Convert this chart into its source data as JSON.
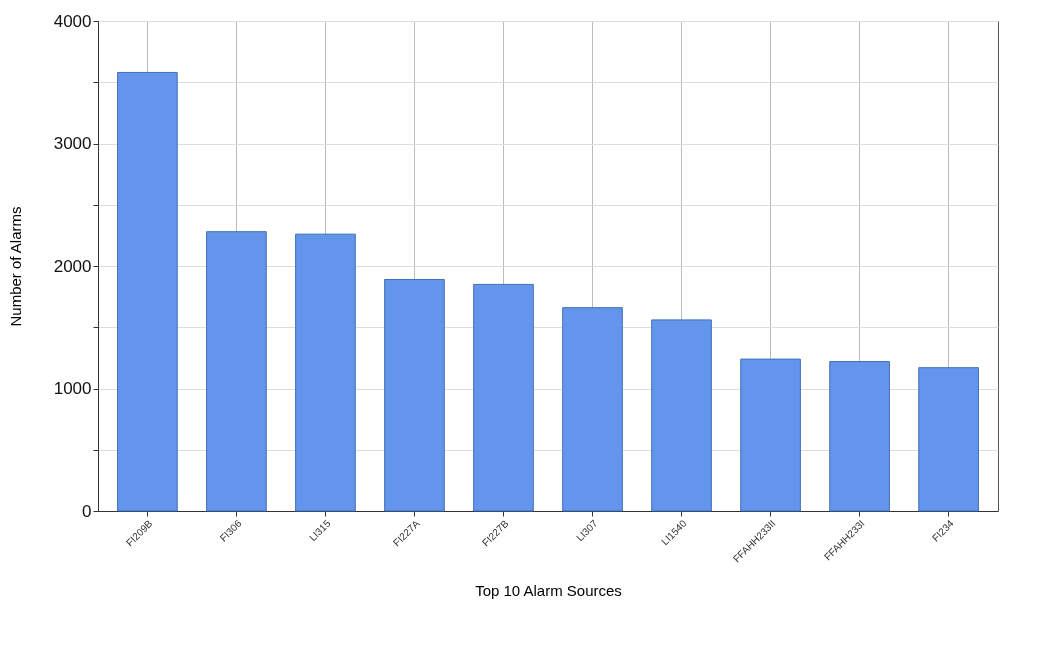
{
  "chart_data": {
    "type": "bar",
    "xlabel": "Top 10 Alarm Sources",
    "ylabel": "Number of Alarms",
    "categories": [
      "FI209B",
      "FI306",
      "LI315",
      "FI227A",
      "FI227B",
      "LI307",
      "LI1540",
      "FFAHH233II",
      "FFAHH233I",
      "FI234"
    ],
    "values": [
      3580,
      2280,
      2260,
      1890,
      1850,
      1660,
      1560,
      1240,
      1220,
      1170
    ],
    "color": "#6495ed",
    "ylim": [
      0,
      4000
    ],
    "yticks": [
      0,
      {
        "value": 500,
        "label": null
      },
      1000,
      {
        "value": 1500,
        "label": null
      },
      2000,
      {
        "value": 2500,
        "label": null
      },
      3000,
      {
        "value": 3500,
        "label": null
      },
      4000
    ],
    "grid": true
  }
}
